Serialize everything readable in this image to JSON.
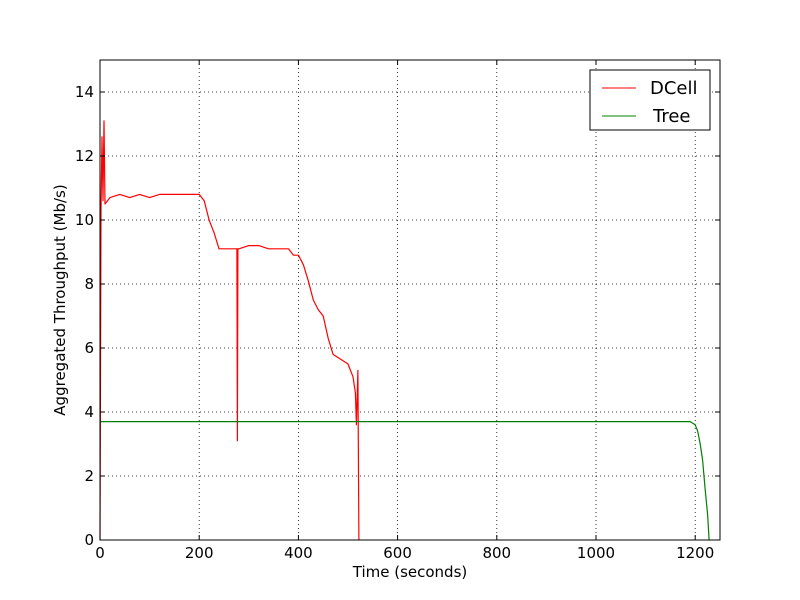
{
  "chart_data": {
    "type": "line",
    "title": "",
    "xlabel": "Time (seconds)",
    "ylabel": "Aggregated Throughput (Mb/s)",
    "xlim": [
      0,
      1250
    ],
    "ylim": [
      0,
      15
    ],
    "xticks": [
      "0",
      "200",
      "400",
      "600",
      "800",
      "1000",
      "1200"
    ],
    "yticks": [
      "0",
      "2",
      "4",
      "6",
      "8",
      "10",
      "12",
      "14"
    ],
    "grid": true,
    "legend_position": "top-right",
    "series": [
      {
        "name": "DCell",
        "color": "#ff0000",
        "x": [
          0,
          2,
          4,
          6,
          8,
          10,
          20,
          40,
          60,
          80,
          100,
          120,
          140,
          160,
          180,
          200,
          210,
          220,
          230,
          240,
          260,
          276,
          277,
          278,
          279,
          280,
          300,
          320,
          340,
          360,
          380,
          390,
          400,
          410,
          420,
          430,
          440,
          450,
          460,
          470,
          480,
          490,
          500,
          510,
          515,
          517,
          520,
          522
        ],
        "y": [
          0,
          10.3,
          12.6,
          10.6,
          13.1,
          10.5,
          10.7,
          10.8,
          10.7,
          10.8,
          10.7,
          10.8,
          10.8,
          10.8,
          10.8,
          10.8,
          10.6,
          10.0,
          9.6,
          9.1,
          9.1,
          9.1,
          3.1,
          9.1,
          9.1,
          9.1,
          9.2,
          9.2,
          9.1,
          9.1,
          9.1,
          8.9,
          8.9,
          8.6,
          8.1,
          7.5,
          7.2,
          7.0,
          6.3,
          5.8,
          5.7,
          5.6,
          5.5,
          5.1,
          4.6,
          3.6,
          5.3,
          0
        ]
      },
      {
        "name": "Tree",
        "color": "#008000",
        "x": [
          0,
          50,
          100,
          150,
          200,
          250,
          300,
          350,
          400,
          450,
          500,
          550,
          600,
          650,
          700,
          750,
          800,
          850,
          900,
          950,
          1000,
          1050,
          1100,
          1150,
          1190,
          1200,
          1205,
          1210,
          1215,
          1220,
          1225,
          1228
        ],
        "y": [
          3.7,
          3.7,
          3.7,
          3.7,
          3.7,
          3.7,
          3.7,
          3.7,
          3.7,
          3.7,
          3.7,
          3.7,
          3.7,
          3.7,
          3.7,
          3.7,
          3.7,
          3.7,
          3.7,
          3.7,
          3.7,
          3.7,
          3.7,
          3.7,
          3.7,
          3.6,
          3.4,
          3.0,
          2.5,
          1.6,
          0.8,
          0
        ]
      }
    ]
  }
}
